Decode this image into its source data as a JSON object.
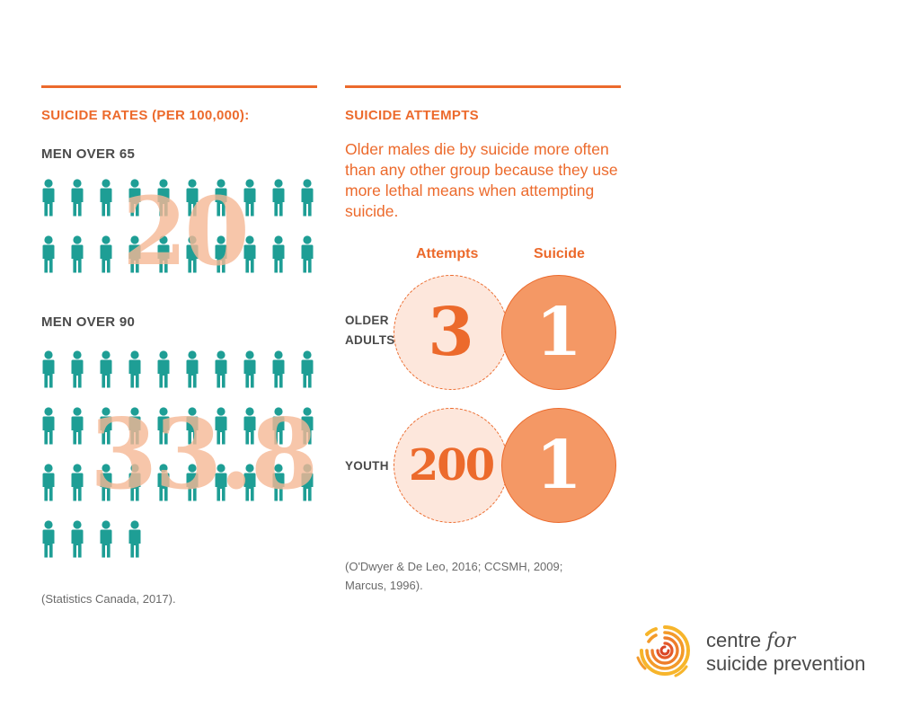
{
  "colors": {
    "accent": "#ec6a2c",
    "teal": "#1e9e95",
    "light_peach": "#fde7dc",
    "peach": "#f49865",
    "text_gray": "#4a4a4a"
  },
  "rates": {
    "heading": "SUICIDE RATES (PER 100,000):",
    "groups": [
      {
        "label": "MEN OVER 65",
        "rate": "20",
        "figure_count": 20
      },
      {
        "label": "MEN OVER 90",
        "rate": "33.8",
        "figure_count": 34
      }
    ],
    "source": "(Statistics Canada, 2017)."
  },
  "attempts": {
    "heading": "SUICIDE ATTEMPTS",
    "intro": "Older males die by suicide more often than any other group because they use more lethal means when attempting suicide.",
    "col_attempts": "Attempts",
    "col_suicide": "Suicide",
    "rows": [
      {
        "label_line1": "OLDER",
        "label_line2": "ADULTS",
        "attempts": "3",
        "suicide": "1"
      },
      {
        "label_line1": "YOUTH",
        "label_line2": "",
        "attempts": "200",
        "suicide": "1"
      }
    ],
    "source_line1": "(O'Dwyer & De Leo, 2016; CCSMH, 2009;",
    "source_line2": "Marcus, 1996)."
  },
  "brand": {
    "word1": "centre",
    "word2": "for",
    "line2": "suicide prevention",
    "logo_icon": "fingerprint-swirl-icon"
  },
  "chart_data": [
    {
      "type": "pictogram",
      "title": "SUICIDE RATES (PER 100,000):",
      "categories": [
        "MEN OVER 65",
        "MEN OVER 90"
      ],
      "values": [
        20,
        33.8
      ]
    },
    {
      "type": "venn",
      "title": "SUICIDE ATTEMPTS",
      "categories": [
        "OLDER ADULTS",
        "YOUTH"
      ],
      "series": [
        {
          "name": "Attempts",
          "values": [
            3,
            200
          ]
        },
        {
          "name": "Suicide",
          "values": [
            1,
            1
          ]
        }
      ]
    }
  ]
}
